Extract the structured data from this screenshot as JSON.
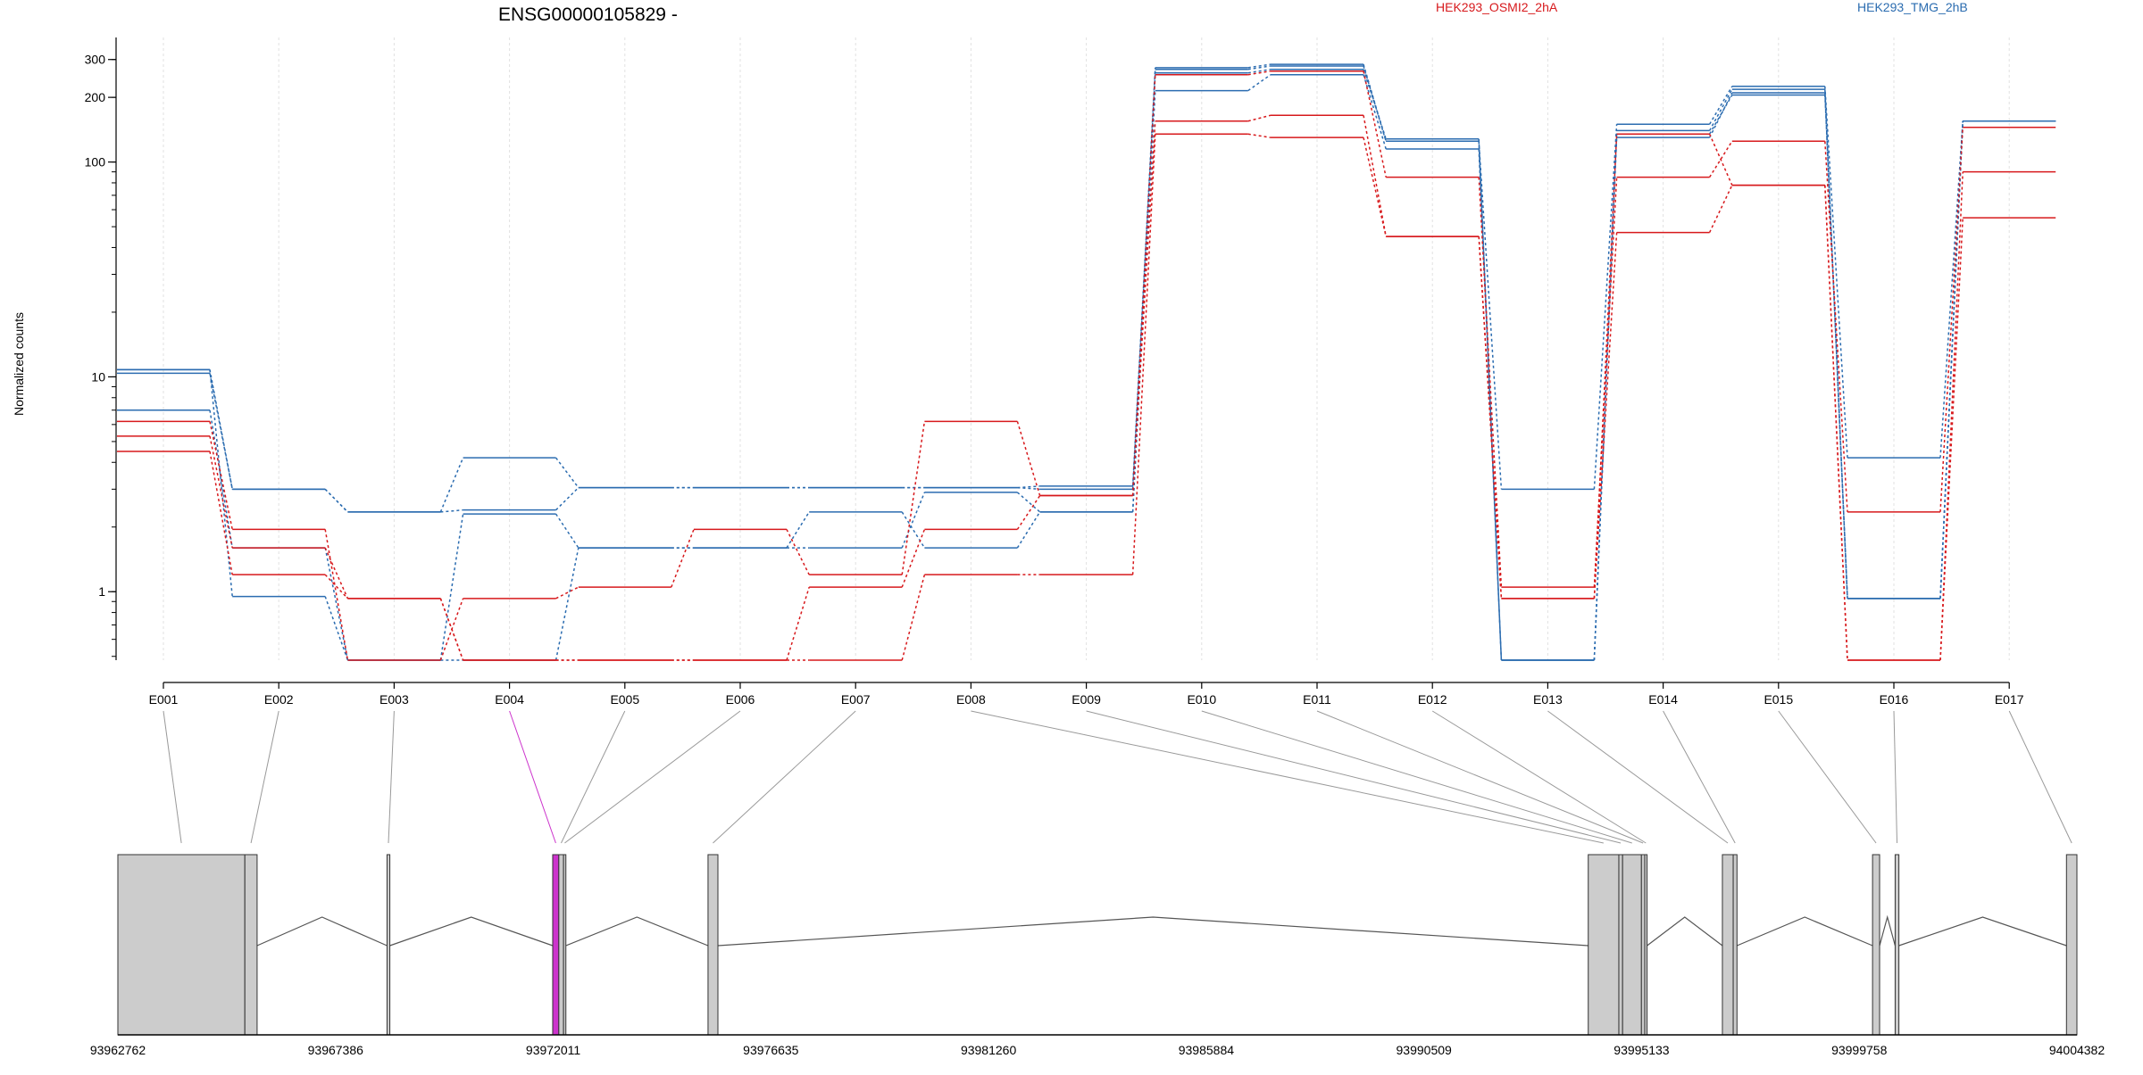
{
  "chart_data": {
    "type": "line",
    "title": "ENSG00000105829 -",
    "ylabel": "Normalized counts",
    "xlabel": "",
    "yscale": "log",
    "ylim": [
      0.48,
      380
    ],
    "yticks": [
      "1",
      "10",
      "100",
      "200",
      "300"
    ],
    "ytick_values": [
      1,
      10,
      100,
      200,
      300
    ],
    "grid": "vertical dotted",
    "legend": [
      {
        "name": "HEK293_OSMI2_2hA",
        "color": "#d7191c"
      },
      {
        "name": "HEK293_TMG_2hB",
        "color": "#2b6cb0"
      }
    ],
    "categories": [
      "E001",
      "E002",
      "E003",
      "E004",
      "E005",
      "E006",
      "E007",
      "E008",
      "E009",
      "E010",
      "E011",
      "E012",
      "E013",
      "E014",
      "E015",
      "E016",
      "E017"
    ],
    "series": [
      {
        "group": "HEK293_TMG_2hB",
        "color": "#2b6cb0",
        "values": [
          10.8,
          3.0,
          2.35,
          4.2,
          3.05,
          3.05,
          3.05,
          3.05,
          3.1,
          275,
          285,
          125,
          3.0,
          150,
          225,
          4.2,
          155
        ]
      },
      {
        "group": "HEK293_TMG_2hB",
        "color": "#2b6cb0",
        "values": [
          10.4,
          3.0,
          2.35,
          2.4,
          3.05,
          3.05,
          3.05,
          3.05,
          3.0,
          260,
          270,
          128,
          0.48,
          140,
          218,
          0.93,
          155
        ]
      },
      {
        "group": "HEK293_TMG_2hB",
        "color": "#2b6cb0",
        "values": [
          7.0,
          1.6,
          0.48,
          2.3,
          1.6,
          1.6,
          2.35,
          1.6,
          2.35,
          215,
          255,
          115,
          0.48,
          135,
          205,
          0.93,
          155
        ]
      },
      {
        "group": "HEK293_TMG_2hB",
        "color": "#2b6cb0",
        "values": [
          10.8,
          0.95,
          0.48,
          0.48,
          1.6,
          1.6,
          1.6,
          2.9,
          2.35,
          270,
          280,
          125,
          0.48,
          130,
          210,
          0.93,
          155
        ]
      },
      {
        "group": "HEK293_OSMI2_2hA",
        "color": "#d7191c",
        "values": [
          6.2,
          1.95,
          0.48,
          0.93,
          1.05,
          1.95,
          1.2,
          6.2,
          2.8,
          255,
          265,
          85,
          1.05,
          85,
          125,
          2.35,
          145
        ]
      },
      {
        "group": "HEK293_OSMI2_2hA",
        "color": "#d7191c",
        "values": [
          5.3,
          1.6,
          0.93,
          0.48,
          0.48,
          0.48,
          1.05,
          1.95,
          2.8,
          155,
          165,
          45,
          0.93,
          47,
          78,
          0.48,
          90
        ]
      },
      {
        "group": "HEK293_OSMI2_2hA",
        "color": "#d7191c",
        "values": [
          4.5,
          1.2,
          0.93,
          0.48,
          0.48,
          0.48,
          0.48,
          1.2,
          1.2,
          135,
          130,
          45,
          0.93,
          135,
          78,
          0.48,
          55
        ]
      }
    ],
    "genomic_ticks": [
      "93962762",
      "93967386",
      "93972011",
      "93976635",
      "93981260",
      "93985884",
      "93990509",
      "93995133",
      "93999758",
      "94004382"
    ],
    "genomic_range": [
      93962762,
      94004382
    ],
    "exons": [
      {
        "id": "E001",
        "start": 93962762,
        "end": 93965460
      },
      {
        "id": "E002",
        "start": 93965460,
        "end": 93965720
      },
      {
        "id": "E003",
        "start": 93968480,
        "end": 93968540
      },
      {
        "id": "E004",
        "start": 93972000,
        "end": 93972130,
        "highlight": true
      },
      {
        "id": "E005",
        "start": 93972130,
        "end": 93972230
      },
      {
        "id": "E006",
        "start": 93972230,
        "end": 93972280
      },
      {
        "id": "E007",
        "start": 93975300,
        "end": 93975510
      },
      {
        "id": "E008",
        "start": 93994000,
        "end": 93994650
      },
      {
        "id": "E009",
        "start": 93994650,
        "end": 93994730
      },
      {
        "id": "E010",
        "start": 93994730,
        "end": 93995130
      },
      {
        "id": "E011",
        "start": 93995130,
        "end": 93995200
      },
      {
        "id": "E012",
        "start": 93995200,
        "end": 93995250
      },
      {
        "id": "E013",
        "start": 93996850,
        "end": 93997080
      },
      {
        "id": "E014",
        "start": 93997080,
        "end": 93997160
      },
      {
        "id": "E015",
        "start": 94000040,
        "end": 94000190
      },
      {
        "id": "E016",
        "start": 94000520,
        "end": 94000600
      },
      {
        "id": "E017",
        "start": 94004160,
        "end": 94004382
      }
    ],
    "introns": [
      [
        93965720,
        93968480
      ],
      [
        93968540,
        93972000
      ],
      [
        93972280,
        93975300
      ],
      [
        93975510,
        93994000
      ],
      [
        93995250,
        93996850
      ],
      [
        93997160,
        94000040
      ],
      [
        94000190,
        94000520
      ],
      [
        94000600,
        94004160
      ]
    ]
  },
  "colors": {
    "osmi": "#d7191c",
    "tmg": "#2b6cb0",
    "exon_fill": "#cccccc",
    "highlight": "#cc33cc",
    "connector": "#999999"
  }
}
